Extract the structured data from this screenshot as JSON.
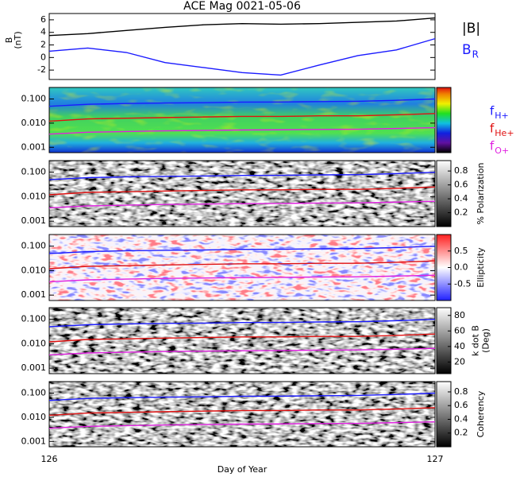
{
  "chart_data": [
    {
      "type": "line",
      "title": "ACE Mag 0021-05-06",
      "ylabel": [
        "B",
        "(nT)"
      ],
      "x": [
        126,
        126.1,
        126.2,
        126.3,
        126.4,
        126.5,
        126.6,
        126.7,
        126.8,
        126.9,
        127
      ],
      "xlim": [
        126,
        127
      ],
      "ylim": [
        -3.5,
        7
      ],
      "yticks": [
        -2,
        0,
        2,
        4,
        6
      ],
      "series": [
        {
          "name": "|B|",
          "color": "#000000",
          "values": [
            3.5,
            3.8,
            4.3,
            4.8,
            5.2,
            5.4,
            5.3,
            5.4,
            5.6,
            5.8,
            6.3
          ]
        },
        {
          "name": "B",
          "subscript": "R",
          "color": "#1a1aff",
          "values": [
            1,
            1.5,
            0.8,
            -0.8,
            -1.6,
            -2.4,
            -2.8,
            -1.2,
            0.3,
            1.2,
            3
          ]
        }
      ]
    },
    {
      "type": "spectrogram",
      "colormap": "rainbow",
      "log_y": true,
      "x": [
        126,
        126.1,
        126.2,
        126.3,
        126.4,
        126.5,
        126.6,
        126.7,
        126.8,
        126.9,
        127
      ],
      "xlim": [
        126,
        127
      ],
      "ylim": [
        0.0006,
        0.3
      ],
      "yticks": [
        0.001,
        {
          "value": 0.01,
          "label": "0.010"
        },
        {
          "value": 0.1,
          "label": "0.100"
        }
      ],
      "series": [
        {
          "name": "f",
          "subscript": "H+",
          "color": "#1a1aff",
          "values": [
            0.05,
            0.06,
            0.065,
            0.068,
            0.07,
            0.074,
            0.075,
            0.078,
            0.08,
            0.088,
            0.1
          ]
        },
        {
          "name": "f",
          "subscript": "He+",
          "color": "#e01010",
          "values": [
            0.012,
            0.015,
            0.016,
            0.017,
            0.018,
            0.019,
            0.019,
            0.02,
            0.02,
            0.022,
            0.025
          ]
        },
        {
          "name": "f",
          "subscript": "O+",
          "color": "#e020e0",
          "values": [
            0.0035,
            0.0042,
            0.0045,
            0.0048,
            0.005,
            0.0052,
            0.0053,
            0.0055,
            0.0056,
            0.006,
            0.0065
          ]
        }
      ]
    },
    {
      "type": "spectrogram",
      "colormap": "gray",
      "log_y": true,
      "x": [
        126,
        126.1,
        126.2,
        126.3,
        126.4,
        126.5,
        126.6,
        126.7,
        126.8,
        126.9,
        127
      ],
      "xlim": [
        126,
        127
      ],
      "ylim": [
        0.0006,
        0.3
      ],
      "yticks": [
        0.001,
        {
          "value": 0.01,
          "label": "0.010"
        },
        {
          "value": 0.1,
          "label": "0.100"
        }
      ],
      "clim": [
        0,
        0.95
      ],
      "cticks": [
        0.2,
        0.4,
        0.6,
        0.8
      ],
      "clabel": [
        "% Polarization"
      ],
      "series": [
        {
          "color": "#1a1aff",
          "values": [
            0.05,
            0.06,
            0.065,
            0.068,
            0.07,
            0.074,
            0.075,
            0.078,
            0.08,
            0.088,
            0.1
          ]
        },
        {
          "color": "#e01010",
          "values": [
            0.012,
            0.015,
            0.016,
            0.017,
            0.018,
            0.019,
            0.019,
            0.02,
            0.02,
            0.022,
            0.025
          ]
        },
        {
          "color": "#e020e0",
          "values": [
            0.0035,
            0.0042,
            0.0045,
            0.0048,
            0.005,
            0.0052,
            0.0053,
            0.0055,
            0.0056,
            0.006,
            0.0065
          ]
        }
      ]
    },
    {
      "type": "spectrogram",
      "colormap": "bwr",
      "log_y": true,
      "x": [
        126,
        126.1,
        126.2,
        126.3,
        126.4,
        126.5,
        126.6,
        126.7,
        126.8,
        126.9,
        127
      ],
      "xlim": [
        126,
        127
      ],
      "ylim": [
        0.0006,
        0.3
      ],
      "yticks": [
        0.001,
        {
          "value": 0.01,
          "label": "0.010"
        },
        {
          "value": 0.1,
          "label": "0.100"
        }
      ],
      "clim": [
        -1,
        1
      ],
      "cticks": [
        -0.5,
        {
          "value": 0,
          "label": "0.0"
        },
        0.5
      ],
      "clabel": [
        "Ellipticity"
      ],
      "series": [
        {
          "color": "#1a1aff",
          "values": [
            0.05,
            0.06,
            0.065,
            0.068,
            0.07,
            0.074,
            0.075,
            0.078,
            0.08,
            0.088,
            0.1
          ]
        },
        {
          "color": "#e01010",
          "values": [
            0.012,
            0.015,
            0.016,
            0.017,
            0.018,
            0.019,
            0.019,
            0.02,
            0.02,
            0.022,
            0.025
          ]
        },
        {
          "color": "#e020e0",
          "values": [
            0.0035,
            0.0042,
            0.0045,
            0.0048,
            0.005,
            0.0052,
            0.0053,
            0.0055,
            0.0056,
            0.006,
            0.0065
          ]
        }
      ]
    },
    {
      "type": "spectrogram",
      "colormap": "gray",
      "log_y": true,
      "x": [
        126,
        126.1,
        126.2,
        126.3,
        126.4,
        126.5,
        126.6,
        126.7,
        126.8,
        126.9,
        127
      ],
      "xlim": [
        126,
        127
      ],
      "ylim": [
        0.0006,
        0.3
      ],
      "yticks": [
        0.001,
        {
          "value": 0.01,
          "label": "0.010"
        },
        {
          "value": 0.1,
          "label": "0.100"
        }
      ],
      "clim": [
        5,
        90
      ],
      "cticks": [
        20,
        40,
        60,
        80
      ],
      "clabel": [
        "k dot B",
        "(Deg)"
      ],
      "series": [
        {
          "color": "#1a1aff",
          "values": [
            0.05,
            0.06,
            0.065,
            0.068,
            0.07,
            0.074,
            0.075,
            0.078,
            0.08,
            0.088,
            0.1
          ]
        },
        {
          "color": "#e01010",
          "values": [
            0.012,
            0.015,
            0.016,
            0.017,
            0.018,
            0.019,
            0.019,
            0.02,
            0.02,
            0.022,
            0.025
          ]
        },
        {
          "color": "#e020e0",
          "values": [
            0.0035,
            0.0042,
            0.0045,
            0.0048,
            0.005,
            0.0052,
            0.0053,
            0.0055,
            0.0056,
            0.006,
            0.0065
          ]
        }
      ]
    },
    {
      "type": "spectrogram",
      "colormap": "gray",
      "log_y": true,
      "x": [
        126,
        126.1,
        126.2,
        126.3,
        126.4,
        126.5,
        126.6,
        126.7,
        126.8,
        126.9,
        127
      ],
      "xlim": [
        126,
        127
      ],
      "ylim": [
        0.0006,
        0.3
      ],
      "yticks": [
        0.001,
        {
          "value": 0.01,
          "label": "0.010"
        },
        {
          "value": 0.1,
          "label": "0.100"
        }
      ],
      "clim": [
        0,
        0.95
      ],
      "cticks": [
        0.2,
        0.4,
        0.6,
        0.8
      ],
      "clabel": [
        "Coherency"
      ],
      "xticks": [
        126,
        127
      ],
      "xlabel": "Day of Year",
      "series": [
        {
          "color": "#1a1aff",
          "values": [
            0.05,
            0.06,
            0.065,
            0.068,
            0.07,
            0.074,
            0.075,
            0.078,
            0.08,
            0.088,
            0.1
          ]
        },
        {
          "color": "#e01010",
          "values": [
            0.012,
            0.015,
            0.016,
            0.017,
            0.018,
            0.019,
            0.019,
            0.02,
            0.02,
            0.022,
            0.025
          ]
        },
        {
          "color": "#e020e0",
          "values": [
            0.0035,
            0.0042,
            0.0045,
            0.0048,
            0.005,
            0.0052,
            0.0053,
            0.0055,
            0.0056,
            0.006,
            0.0065
          ]
        }
      ]
    }
  ]
}
